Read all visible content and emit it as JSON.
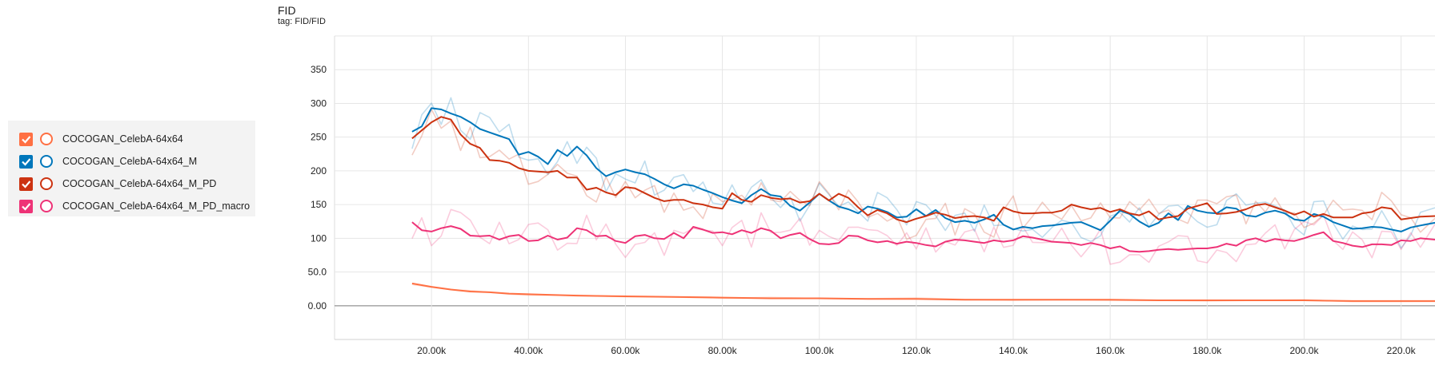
{
  "header": {
    "title": "FID",
    "tag": "tag: FID/FID"
  },
  "legend": [
    {
      "name": "COCOGAN_CelebA-64x64",
      "color": "#ff7043",
      "checked": true
    },
    {
      "name": "COCOGAN_CelebA-64x64_M",
      "color": "#0077bb",
      "checked": true
    },
    {
      "name": "COCOGAN_CelebA-64x64_M_PD",
      "color": "#cc3311",
      "checked": true
    },
    {
      "name": "COCOGAN_CelebA-64x64_M_PD_macro",
      "color": "#ee3377",
      "checked": true
    }
  ],
  "chart_data": {
    "type": "line",
    "title": "FID",
    "subtitle": "tag: FID/FID",
    "xlim": [
      0,
      227000
    ],
    "ylim": [
      -50,
      400
    ],
    "x_ticks": [
      "20.00k",
      "40.00k",
      "60.00k",
      "80.00k",
      "100.0k",
      "120.0k",
      "140.0k",
      "160.0k",
      "180.0k",
      "200.0k",
      "220.0k"
    ],
    "y_ticks": [
      "0.00",
      "50.0",
      "100",
      "150",
      "200",
      "250",
      "300",
      "350"
    ],
    "grid": true,
    "smoothed": true,
    "series": [
      {
        "name": "COCOGAN_CelebA-64x64",
        "color": "#ff7043",
        "x": [
          16000,
          20000,
          24000,
          28000,
          32000,
          36000,
          40000,
          50000,
          60000,
          70000,
          80000,
          90000,
          100000,
          110000,
          120000,
          130000,
          140000,
          150000,
          160000,
          170000,
          180000,
          190000,
          200000,
          210000,
          220000,
          227000
        ],
        "smoothed": [
          33,
          28,
          24,
          21,
          20,
          18,
          17,
          15,
          14,
          13,
          12,
          11,
          11,
          10,
          10,
          9,
          9,
          9,
          9,
          8,
          8,
          8,
          8,
          7,
          7,
          7
        ]
      },
      {
        "name": "COCOGAN_CelebA-64x64_M",
        "color": "#0077bb",
        "x": [
          16000,
          18000,
          20000,
          22000,
          24000,
          26000,
          28000,
          30000,
          32000,
          34000,
          36000,
          38000,
          40000,
          42000,
          44000,
          46000,
          48000,
          50000,
          52000,
          54000,
          56000,
          58000,
          60000,
          62000,
          64000,
          66000,
          68000,
          70000,
          72000,
          74000,
          76000,
          78000,
          80000,
          82000,
          84000,
          86000,
          88000,
          90000,
          92000,
          94000,
          96000,
          98000,
          100000,
          102000,
          104000,
          106000,
          108000,
          110000,
          112000,
          114000,
          116000,
          118000,
          120000,
          122000,
          124000,
          126000,
          128000,
          130000,
          132000,
          134000,
          136000,
          138000,
          140000,
          142000,
          144000,
          146000,
          148000,
          150000,
          152000,
          154000,
          156000,
          158000,
          160000,
          162000,
          164000,
          166000,
          168000,
          170000,
          172000,
          174000,
          176000,
          178000,
          180000,
          182000,
          184000,
          186000,
          188000,
          190000,
          192000,
          194000,
          196000,
          198000,
          200000,
          202000,
          204000,
          206000,
          208000,
          210000,
          212000,
          214000,
          216000,
          218000,
          220000,
          222000,
          224000,
          227000
        ],
        "smoothed": [
          258,
          266,
          293,
          291,
          285,
          280,
          272,
          262,
          257,
          252,
          247,
          224,
          228,
          221,
          210,
          231,
          222,
          236,
          223,
          204,
          192,
          198,
          202,
          198,
          195,
          188,
          180,
          174,
          180,
          178,
          172,
          167,
          161,
          156,
          152,
          164,
          173,
          164,
          162,
          148,
          141,
          153,
          166,
          156,
          147,
          143,
          137,
          147,
          144,
          139,
          131,
          132,
          143,
          133,
          142,
          130,
          124,
          126,
          123,
          128,
          135,
          120,
          113,
          117,
          115,
          118,
          119,
          121,
          123,
          124,
          118,
          112,
          126,
          141,
          136,
          125,
          117,
          123,
          137,
          127,
          148,
          141,
          138,
          137,
          146,
          144,
          134,
          132,
          138,
          141,
          137,
          128,
          126,
          136,
          132,
          124,
          119,
          114,
          115,
          117,
          116,
          113,
          110,
          116,
          119,
          123
        ]
      },
      {
        "name": "COCOGAN_CelebA-64x64_M_PD",
        "color": "#cc3311",
        "x": [
          16000,
          18000,
          20000,
          22000,
          24000,
          26000,
          28000,
          30000,
          32000,
          34000,
          36000,
          38000,
          40000,
          42000,
          44000,
          46000,
          48000,
          50000,
          52000,
          54000,
          56000,
          58000,
          60000,
          62000,
          64000,
          66000,
          68000,
          70000,
          72000,
          74000,
          76000,
          78000,
          80000,
          82000,
          84000,
          86000,
          88000,
          90000,
          92000,
          94000,
          96000,
          98000,
          100000,
          102000,
          104000,
          106000,
          108000,
          110000,
          112000,
          114000,
          116000,
          118000,
          120000,
          122000,
          124000,
          126000,
          128000,
          130000,
          132000,
          134000,
          136000,
          138000,
          140000,
          142000,
          144000,
          146000,
          148000,
          150000,
          152000,
          154000,
          156000,
          158000,
          160000,
          162000,
          164000,
          166000,
          168000,
          170000,
          172000,
          174000,
          176000,
          178000,
          180000,
          182000,
          184000,
          186000,
          188000,
          190000,
          192000,
          194000,
          196000,
          198000,
          200000,
          202000,
          204000,
          206000,
          208000,
          210000,
          212000,
          214000,
          216000,
          218000,
          220000,
          222000,
          224000,
          227000
        ],
        "smoothed": [
          248,
          260,
          272,
          280,
          276,
          254,
          240,
          234,
          216,
          215,
          212,
          204,
          200,
          199,
          198,
          200,
          190,
          190,
          172,
          175,
          168,
          164,
          176,
          174,
          167,
          160,
          155,
          157,
          157,
          152,
          150,
          146,
          144,
          167,
          157,
          154,
          164,
          160,
          158,
          159,
          153,
          155,
          166,
          156,
          166,
          160,
          146,
          134,
          142,
          137,
          128,
          124,
          129,
          133,
          138,
          135,
          130,
          132,
          133,
          131,
          126,
          146,
          140,
          137,
          137,
          138,
          138,
          141,
          150,
          146,
          143,
          145,
          139,
          143,
          137,
          134,
          140,
          128,
          131,
          133,
          144,
          148,
          152,
          136,
          137,
          139,
          143,
          149,
          151,
          146,
          141,
          135,
          140,
          132,
          136,
          131,
          131,
          131,
          137,
          139,
          146,
          144,
          128,
          130,
          132,
          133
        ]
      },
      {
        "name": "COCOGAN_CelebA-64x64_M_PD_macro",
        "color": "#ee3377",
        "x": [
          16000,
          18000,
          20000,
          22000,
          24000,
          26000,
          28000,
          30000,
          32000,
          34000,
          36000,
          38000,
          40000,
          42000,
          44000,
          46000,
          48000,
          50000,
          52000,
          54000,
          56000,
          58000,
          60000,
          62000,
          64000,
          66000,
          68000,
          70000,
          72000,
          74000,
          76000,
          78000,
          80000,
          82000,
          84000,
          86000,
          88000,
          90000,
          92000,
          94000,
          96000,
          98000,
          100000,
          102000,
          104000,
          106000,
          108000,
          110000,
          112000,
          114000,
          116000,
          118000,
          120000,
          122000,
          124000,
          126000,
          128000,
          130000,
          132000,
          134000,
          136000,
          138000,
          140000,
          142000,
          144000,
          146000,
          148000,
          150000,
          152000,
          154000,
          156000,
          158000,
          160000,
          162000,
          164000,
          166000,
          168000,
          170000,
          172000,
          174000,
          176000,
          178000,
          180000,
          182000,
          184000,
          186000,
          188000,
          190000,
          192000,
          194000,
          196000,
          198000,
          200000,
          202000,
          204000,
          206000,
          208000,
          210000,
          212000,
          214000,
          216000,
          218000,
          220000,
          222000,
          224000,
          227000
        ],
        "smoothed": [
          124,
          112,
          110,
          115,
          118,
          114,
          104,
          103,
          104,
          98,
          103,
          105,
          96,
          97,
          104,
          98,
          101,
          115,
          112,
          103,
          104,
          96,
          93,
          103,
          105,
          100,
          99,
          108,
          100,
          117,
          113,
          108,
          109,
          106,
          112,
          108,
          115,
          111,
          100,
          105,
          108,
          99,
          92,
          91,
          93,
          104,
          103,
          97,
          94,
          96,
          92,
          95,
          93,
          90,
          88,
          95,
          98,
          97,
          95,
          93,
          97,
          95,
          97,
          103,
          101,
          98,
          95,
          94,
          93,
          90,
          93,
          90,
          85,
          88,
          81,
          80,
          81,
          83,
          84,
          83,
          84,
          85,
          85,
          87,
          92,
          89,
          97,
          100,
          95,
          99,
          97,
          96,
          100,
          105,
          109,
          96,
          93,
          89,
          87,
          91,
          91,
          90,
          97,
          96,
          100,
          98
        ]
      }
    ]
  }
}
